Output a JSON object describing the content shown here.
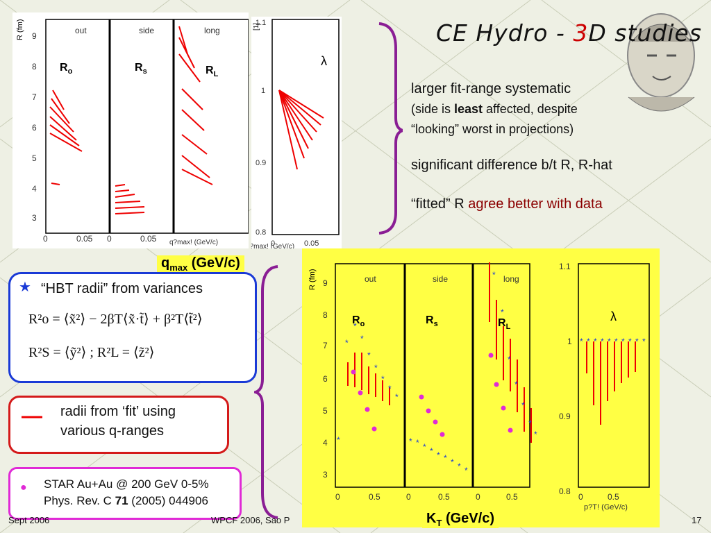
{
  "title": {
    "prefix": "CE Hydro - ",
    "accent": "3",
    "suffix": "D studies"
  },
  "top_panels": {
    "ticks_y": [
      "9",
      "8",
      "7",
      "6",
      "5",
      "4",
      "3"
    ],
    "labels": [
      "out",
      "side",
      "long"
    ],
    "radius_labels": [
      "R",
      "R",
      "R"
    ],
    "radius_subs": [
      "o",
      "s",
      "L"
    ],
    "lambda": "λ",
    "lambda_ticks": [
      "1.1",
      "1",
      "0.9",
      "0.8"
    ],
    "x_ticks": [
      "0",
      "0.05"
    ],
    "x_caption_fragment": "q?max! (GeV/c)",
    "y_axis": "R (fm)",
    "lambda_axis_unit": "[1]"
  },
  "qmax_label": {
    "q": "q",
    "sub": "max",
    "rest": " (GeV/c)"
  },
  "right_text": {
    "line1": "larger fit-range systematic",
    "line2a": "(side is ",
    "line2b": "least",
    "line2c": " affected, despite",
    "line3": "“looking” worst in projections)",
    "line4": "significant difference b/t R, R-hat",
    "line5a": "“fitted” R ",
    "line5b": "agree better with data"
  },
  "blue_box": {
    "star": "★",
    "heading": "“HBT radii” from variances",
    "eq1": "R²o = ⟨x̃²⟩ − 2βT⟨x̃·t̃⟩ + β²T⟨t̃²⟩",
    "eq2": "R²S = ⟨ỹ²⟩  ;  R²L = ⟨z̃²⟩"
  },
  "red_box": {
    "dash": "—",
    "line1": "radii from ‘fit’ using",
    "line2": "various q-ranges"
  },
  "mag_box": {
    "dot": "●",
    "line1": "STAR Au+Au @ 200 GeV 0-5%",
    "line2a": "Phys. Rev. C ",
    "line2b": "71",
    "line2c": " (2005) 044906"
  },
  "bottom_panels": {
    "ticks_y": [
      "9",
      "8",
      "7",
      "6",
      "5",
      "4",
      "3"
    ],
    "labels": [
      "out",
      "side",
      "long"
    ],
    "x_ticks": [
      "0",
      "0.5"
    ],
    "lambda_ticks": [
      "1.1",
      "1",
      "0.9",
      "0.8"
    ],
    "lambda_x_caption": "p?T! (GeV/c)",
    "y_axis": "R (fm)",
    "lambda_axis_unit": "[1]"
  },
  "kt_label": {
    "k": "K",
    "sub": "T",
    "rest": " (GeV/c)"
  },
  "footer": {
    "left": "Sept 2006",
    "center": "WPCF 2006, Sao P",
    "right": "17"
  },
  "colors": {
    "accent": "#cc0000",
    "blue": "#1a3ad6",
    "red": "#d41a1a",
    "magenta": "#e02ad6",
    "yellow": "#ffff44"
  }
}
